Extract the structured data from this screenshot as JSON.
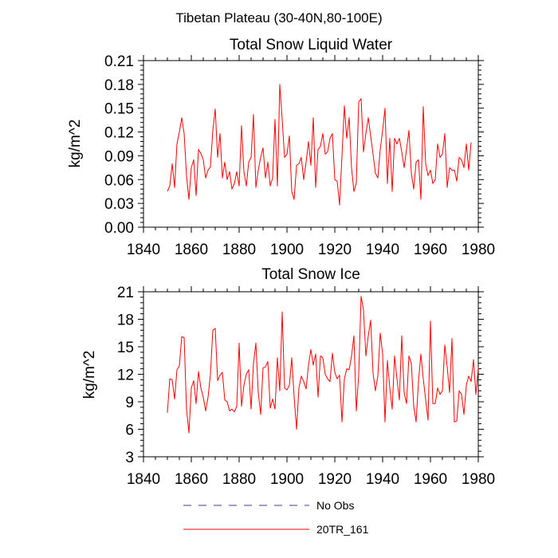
{
  "figure": {
    "title": "Tibetan Plateau (30-40N,80-100E)"
  },
  "colors": {
    "series_line": "#ff0000",
    "no_obs_line": "#3a3aaa",
    "axes": "#000000",
    "background": "#ffffff"
  },
  "legend": {
    "entries": [
      {
        "label": "No Obs",
        "style": "dashed"
      },
      {
        "label": "20TR_161",
        "style": "solid"
      }
    ],
    "placement": "bottom-center"
  },
  "chart_data": [
    {
      "type": "line",
      "title": "Total Snow Liquid Water",
      "xlabel": "",
      "ylabel": "kg/m^2",
      "xlim": [
        1840,
        1980
      ],
      "ylim": [
        0.0,
        0.21
      ],
      "xticks": [
        1840,
        1860,
        1880,
        1900,
        1920,
        1940,
        1960,
        1980
      ],
      "yticks": [
        0.0,
        0.03,
        0.06,
        0.09,
        0.12,
        0.15,
        0.18,
        0.21
      ],
      "ytick_labels": [
        "0.00",
        "0.03",
        "0.06",
        "0.09",
        "0.12",
        "0.15",
        "0.18",
        "0.21"
      ],
      "grid": false,
      "x_start": 1850,
      "x_step": 1,
      "series": [
        {
          "name": "20TR_161",
          "values": [
            0.045,
            0.052,
            0.08,
            0.05,
            0.105,
            0.12,
            0.138,
            0.118,
            0.065,
            0.035,
            0.075,
            0.085,
            0.04,
            0.098,
            0.093,
            0.085,
            0.062,
            0.072,
            0.076,
            0.122,
            0.149,
            0.088,
            0.118,
            0.062,
            0.082,
            0.06,
            0.07,
            0.048,
            0.055,
            0.07,
            0.052,
            0.128,
            0.07,
            0.052,
            0.082,
            0.088,
            0.142,
            0.05,
            0.072,
            0.088,
            0.1,
            0.062,
            0.082,
            0.052,
            0.062,
            0.136,
            0.052,
            0.18,
            0.136,
            0.088,
            0.092,
            0.115,
            0.045,
            0.035,
            0.078,
            0.08,
            0.088,
            0.06,
            0.082,
            0.108,
            0.078,
            0.138,
            0.05,
            0.098,
            0.102,
            0.118,
            0.092,
            0.095,
            0.112,
            0.118,
            0.06,
            0.058,
            0.028,
            0.09,
            0.153,
            0.112,
            0.138,
            0.075,
            0.045,
            0.056,
            0.158,
            0.162,
            0.095,
            0.118,
            0.138,
            0.115,
            0.092,
            0.068,
            0.062,
            0.098,
            0.122,
            0.15,
            0.055,
            0.112,
            0.045,
            0.112,
            0.105,
            0.112,
            0.095,
            0.075,
            0.098,
            0.122,
            0.068,
            0.048,
            0.082,
            0.085,
            0.035,
            0.152,
            0.08,
            0.065,
            0.072,
            0.055,
            0.06,
            0.105,
            0.088,
            0.092,
            0.118,
            0.05,
            0.075,
            0.072,
            0.072,
            0.058,
            0.088,
            0.085,
            0.075,
            0.105,
            0.072,
            0.107
          ]
        }
      ]
    },
    {
      "type": "line",
      "title": "Total Snow Ice",
      "xlabel": "",
      "ylabel": "kg/m^2",
      "xlim": [
        1840,
        1980
      ],
      "ylim": [
        3,
        21
      ],
      "xticks": [
        1840,
        1860,
        1880,
        1900,
        1920,
        1940,
        1960,
        1980
      ],
      "yticks": [
        3,
        6,
        9,
        12,
        15,
        18,
        21
      ],
      "ytick_labels": [
        "3",
        "6",
        "9",
        "12",
        "15",
        "18",
        "21"
      ],
      "grid": false,
      "x_start": 1850,
      "x_step": 1,
      "series": [
        {
          "name": "20TR_161",
          "values": [
            7.8,
            11.5,
            11.4,
            9.3,
            12.5,
            12.9,
            16.1,
            16.0,
            8.2,
            5.6,
            10.5,
            11.3,
            8.8,
            12.3,
            10.5,
            9.5,
            8.0,
            9.5,
            12.0,
            16.8,
            17.0,
            11.3,
            11.9,
            12.2,
            9.2,
            9.0,
            8.0,
            8.2,
            7.9,
            8.5,
            15.4,
            8.5,
            10.8,
            12.0,
            12.5,
            8.2,
            13.2,
            15.4,
            10.0,
            7.6,
            12.7,
            12.8,
            13.4,
            8.3,
            9.3,
            8.2,
            13.8,
            10.2,
            18.8,
            10.5,
            10.3,
            10.8,
            13.8,
            9.5,
            6.0,
            10.5,
            11.8,
            11.2,
            10.4,
            13.0,
            14.7,
            13.0,
            14.2,
            9.5,
            14.0,
            13.8,
            12.0,
            11.5,
            11.2,
            14.3,
            12.2,
            11.5,
            11.9,
            6.8,
            11.5,
            12.6,
            12.5,
            14.0,
            16.2,
            8.0,
            12.0,
            20.5,
            19.0,
            14.0,
            16.2,
            17.9,
            12.1,
            10.2,
            11.8,
            16.5,
            14.2,
            6.8,
            13.5,
            10.5,
            8.2,
            14.0,
            11.5,
            9.2,
            16.2,
            10.0,
            8.8,
            14.0,
            13.2,
            8.5,
            6.8,
            11.2,
            14.2,
            11.5,
            9.2,
            7.0,
            17.8,
            8.8,
            8.8,
            10.5,
            9.8,
            10.2,
            15.2,
            12.8,
            10.0,
            15.9,
            6.8,
            6.9,
            10.2,
            9.8,
            7.6,
            10.8,
            11.8,
            11.2,
            13.6,
            9.8,
            12.7
          ]
        }
      ]
    }
  ]
}
